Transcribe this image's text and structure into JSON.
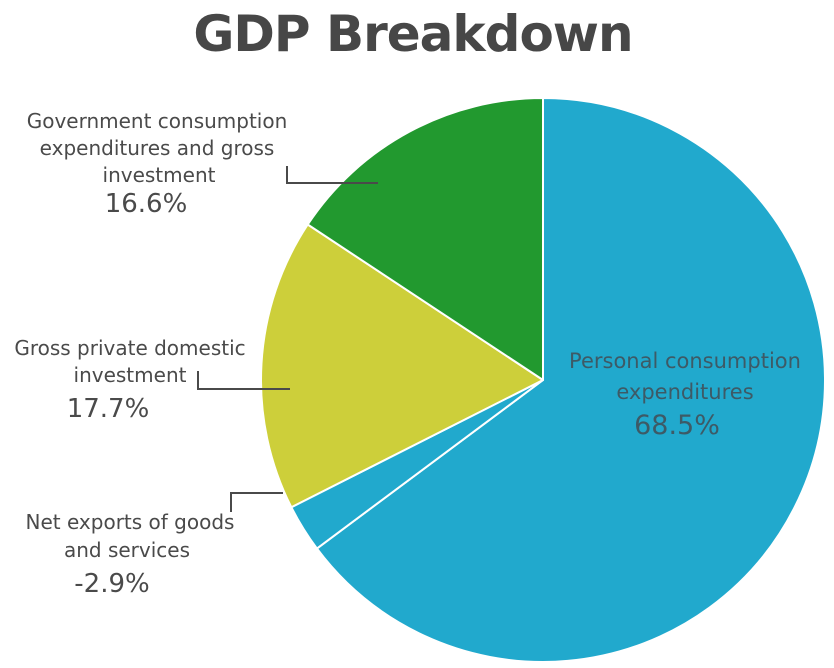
{
  "chart_data": {
    "type": "pie",
    "title": "GDP Breakdown",
    "slices": [
      {
        "name": "Personal consumption expenditures",
        "value": 68.5,
        "label": "68.5%",
        "color": "#21a9cd"
      },
      {
        "name": "Net exports of goods and services",
        "value": -2.9,
        "label": "-2.9%",
        "color": "#21a9cd"
      },
      {
        "name": "Gross private domestic investment",
        "value": 17.7,
        "label": "17.7%",
        "color": "#cdcf3a"
      },
      {
        "name": "Government consumption expenditures and gross investment",
        "value": 16.6,
        "label": "16.6%",
        "color": "#22992f"
      }
    ]
  },
  "labels": {
    "personal": {
      "line1": "Personal consumption",
      "line2": "expenditures",
      "pct": "68.5%"
    },
    "government": {
      "line1": "Government consumption",
      "line2": "expenditures and gross",
      "line3": "investment",
      "pct": "16.6%"
    },
    "private": {
      "line1": "Gross private domestic",
      "line2": "investment",
      "pct": "17.7%"
    },
    "netexports": {
      "line1": "Net exports of goods",
      "line2": "and services",
      "pct": "-2.9%"
    }
  }
}
